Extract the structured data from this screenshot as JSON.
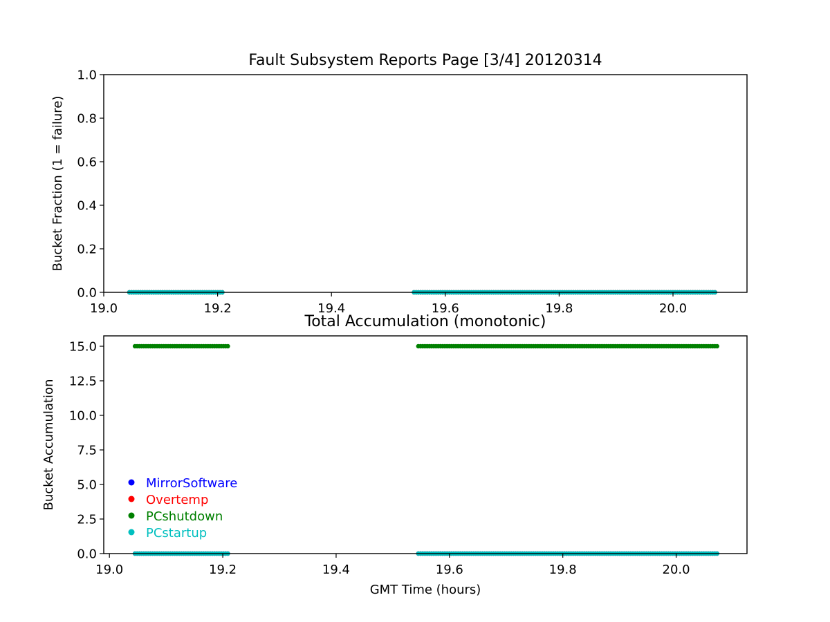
{
  "figure": {
    "background": "#ffffff"
  },
  "series_styles": {
    "MirrorSoftware": "#0000ff",
    "Overtemp": "#ff0000",
    "PCshutdown": "#008000",
    "PCstartup": "#00bfbf"
  },
  "chart_data": [
    {
      "type": "scatter",
      "title": "Fault Subsystem Reports Page [3/4] 20120314",
      "xlabel": "",
      "ylabel": "Bucket Fraction (1 = failure)",
      "xlim": [
        19.0,
        20.13
      ],
      "ylim": [
        0.0,
        1.0
      ],
      "xticks": [
        19.0,
        19.2,
        19.4,
        19.6,
        19.8,
        20.0
      ],
      "xtick_labels": [
        "19.0",
        "19.2",
        "19.4",
        "19.6",
        "19.8",
        "20.0"
      ],
      "yticks": [
        0.0,
        0.2,
        0.4,
        0.6,
        0.8,
        1.0
      ],
      "ytick_labels": [
        "0.0",
        "0.2",
        "0.4",
        "0.6",
        "0.8",
        "1.0"
      ],
      "grid": false,
      "segments": [
        [
          19.045,
          19.21
        ],
        [
          19.545,
          20.075
        ]
      ],
      "series": [
        {
          "name": "MirrorSoftware",
          "color": "#0000ff",
          "y": 0.0
        },
        {
          "name": "Overtemp",
          "color": "#ff0000",
          "y": 0.0
        },
        {
          "name": "PCshutdown",
          "color": "#008000",
          "y": 0.0
        },
        {
          "name": "PCstartup",
          "color": "#00bfbf",
          "y": 0.0
        }
      ]
    },
    {
      "type": "scatter",
      "title": "Total Accumulation (monotonic)",
      "xlabel": "GMT Time (hours)",
      "ylabel": "Bucket Accumulation",
      "xlim": [
        18.99,
        20.125
      ],
      "ylim": [
        0.0,
        15.75
      ],
      "xticks": [
        19.0,
        19.2,
        19.4,
        19.6,
        19.8,
        20.0
      ],
      "xtick_labels": [
        "19.0",
        "19.2",
        "19.4",
        "19.6",
        "19.8",
        "20.0"
      ],
      "yticks": [
        0.0,
        2.5,
        5.0,
        7.5,
        10.0,
        12.5,
        15.0
      ],
      "ytick_labels": [
        "0.0",
        "2.5",
        "5.0",
        "7.5",
        "10.0",
        "12.5",
        "15.0"
      ],
      "grid": false,
      "legend": {
        "placement": "lower-left"
      },
      "segments": [
        [
          19.045,
          19.21
        ],
        [
          19.545,
          20.075
        ]
      ],
      "series": [
        {
          "name": "MirrorSoftware",
          "color": "#0000ff",
          "y": 0.0
        },
        {
          "name": "Overtemp",
          "color": "#ff0000",
          "y": 0.0
        },
        {
          "name": "PCshutdown",
          "color": "#008000",
          "y": 15.0
        },
        {
          "name": "PCstartup",
          "color": "#00bfbf",
          "y": 0.0
        }
      ]
    }
  ]
}
